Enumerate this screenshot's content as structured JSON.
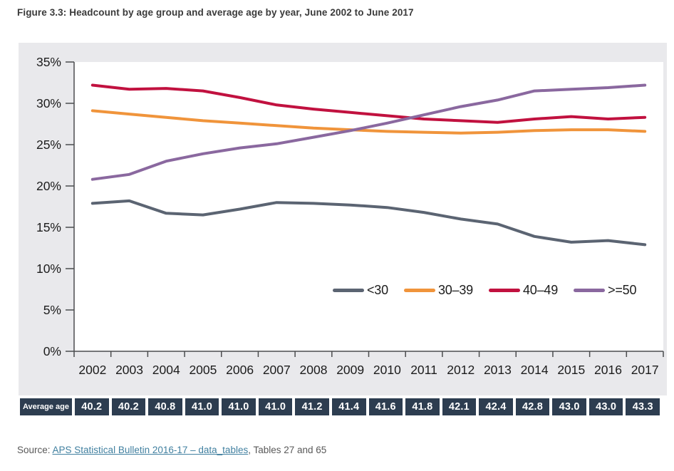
{
  "figure": {
    "title": "Figure 3.3: Headcount by age group and average age by year, June 2002 to June 2017"
  },
  "chart_data": {
    "type": "line",
    "x": [
      2002,
      2003,
      2004,
      2005,
      2006,
      2007,
      2008,
      2009,
      2010,
      2011,
      2012,
      2013,
      2014,
      2015,
      2016,
      2017
    ],
    "series": [
      {
        "name": "<30",
        "color": "#5b6472",
        "values": [
          17.9,
          18.2,
          16.7,
          16.5,
          17.2,
          18.0,
          17.9,
          17.7,
          17.4,
          16.8,
          16.0,
          15.4,
          13.9,
          13.2,
          13.4,
          12.9
        ]
      },
      {
        "name": "30–39",
        "color": "#f0943b",
        "values": [
          29.1,
          28.7,
          28.3,
          27.9,
          27.6,
          27.3,
          27.0,
          26.8,
          26.6,
          26.5,
          26.4,
          26.5,
          26.7,
          26.8,
          26.8,
          26.6
        ]
      },
      {
        "name": "40–49",
        "color": "#c1113f",
        "values": [
          32.2,
          31.7,
          31.8,
          31.5,
          30.7,
          29.8,
          29.3,
          28.9,
          28.5,
          28.1,
          27.9,
          27.7,
          28.1,
          28.4,
          28.1,
          28.3
        ]
      },
      {
        "name": ">=50",
        "color": "#8a689f",
        "values": [
          20.8,
          21.4,
          23.0,
          23.9,
          24.6,
          25.1,
          25.9,
          26.7,
          27.6,
          28.6,
          29.6,
          30.4,
          31.5,
          31.7,
          31.9,
          32.2
        ]
      }
    ],
    "title": "Headcount by age group and average age by year, June 2002 to June 2017",
    "xlabel": "",
    "ylabel": "",
    "ylim": [
      0,
      35
    ],
    "ytick_step": 5,
    "ytick_suffix": "%",
    "grid": false,
    "legend_position": "inside-middle-right"
  },
  "average_age": {
    "label": "Average age",
    "values": [
      "40.2",
      "40.2",
      "40.8",
      "41.0",
      "41.0",
      "41.0",
      "41.2",
      "41.4",
      "41.6",
      "41.8",
      "42.1",
      "42.4",
      "42.8",
      "43.0",
      "43.0",
      "43.3"
    ]
  },
  "source": {
    "prefix": "Source: ",
    "link": "APS Statistical Bulletin 2016-17 – data_tables",
    "suffix": ", Tables 27 and 65"
  },
  "colors": {
    "chart_bg": "#e9e9ec",
    "plot_bg": "#ffffff",
    "axis": "#4b4c4e",
    "tick_label": "#1c1c1c",
    "table_cell_bg": "#2d3d50",
    "table_text": "#ffffff",
    "title_text": "#3a3a3a",
    "source_text": "#595959",
    "link": "#4180a0"
  }
}
